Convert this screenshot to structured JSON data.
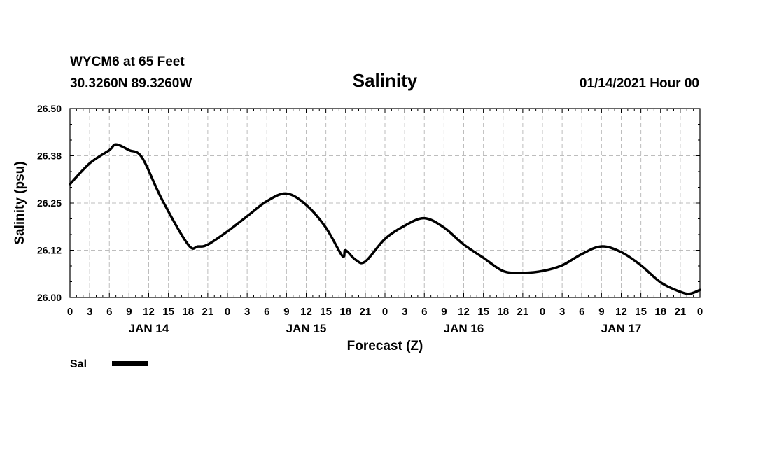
{
  "header": {
    "station_line": "WYCM6 at 65 Feet",
    "coords_line": "30.3260N 89.3260W",
    "timestamp": "01/14/2021 Hour 00"
  },
  "chart_data": {
    "type": "line",
    "title": "Salinity",
    "xlabel": "Forecast (Z)",
    "ylabel": "Salinity (psu)",
    "ylim": [
      26.0,
      26.5
    ],
    "xlim_hours": [
      0,
      96
    ],
    "y_ticks": [
      {
        "value": 26.0,
        "label": "26.00"
      },
      {
        "value": 26.125,
        "label": "26.12"
      },
      {
        "value": 26.25,
        "label": "26.25"
      },
      {
        "value": 26.375,
        "label": "26.38"
      },
      {
        "value": 26.5,
        "label": "26.50"
      }
    ],
    "x_tick_labels": [
      "0",
      "3",
      "6",
      "9",
      "12",
      "15",
      "18",
      "21",
      "0",
      "3",
      "6",
      "9",
      "12",
      "15",
      "18",
      "21",
      "0",
      "3",
      "6",
      "9",
      "12",
      "15",
      "18",
      "21",
      "0",
      "3",
      "6",
      "9",
      "12",
      "15",
      "18",
      "21",
      "0"
    ],
    "day_labels": [
      {
        "hour": 12,
        "label": "JAN 14"
      },
      {
        "hour": 36,
        "label": "JAN 15"
      },
      {
        "hour": 60,
        "label": "JAN 16"
      },
      {
        "hour": 84,
        "label": "JAN 17"
      }
    ],
    "grid": true,
    "legend": "bottom-left",
    "series": [
      {
        "name": "Sal",
        "x": [
          0,
          3,
          6,
          7,
          9,
          11,
          14,
          18,
          19.5,
          21,
          24,
          27,
          30,
          33,
          36,
          39,
          42,
          45,
          43.5,
          43.5,
          41.5,
          42,
          45,
          48,
          51,
          54,
          57,
          60,
          63,
          66,
          69,
          72,
          75,
          78,
          81,
          84,
          87,
          90,
          93,
          94.5,
          96
        ],
        "values": [
          26.3,
          26.355,
          26.39,
          26.405,
          26.39,
          26.37,
          26.26,
          26.14,
          26.135,
          26.14,
          26.175,
          26.215,
          26.255,
          26.275,
          26.245,
          26.185,
          26.125,
          26.095,
          26.1,
          26.1,
          26.11,
          26.105,
          26.13,
          26.155,
          26.19,
          26.21,
          26.185,
          26.14,
          26.105,
          26.07,
          26.065,
          26.07,
          26.085,
          26.115,
          26.135,
          26.12,
          26.085,
          26.04,
          26.015,
          26.01,
          26.02
        ]
      }
    ]
  }
}
